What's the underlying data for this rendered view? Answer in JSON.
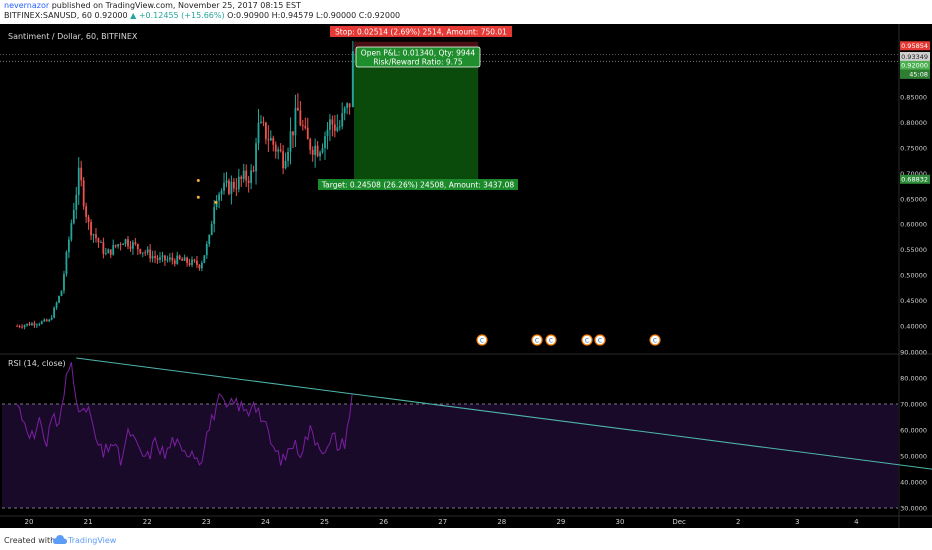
{
  "header": {
    "user": "nevernazor",
    "published_text": "published on TradingView.com, November 25, 2017 08:15 EST",
    "symbol_line": "BITFINEX:SANUSD, 60",
    "last": "0.92000",
    "change": "▲ +0.12455 (+15.66%)",
    "ohlc": "O:0.90900 H:0.94579 L:0.90000 C:0.92000"
  },
  "chart_title": "Santiment / Dollar, 60, BITFINEX",
  "colors": {
    "background": "#000000",
    "up": "#26a69a",
    "down": "#ef5350",
    "rsi_line": "#7b1fa2",
    "rsi_band": "#1a0a2a",
    "trendline": "#4db6ac",
    "profit_zone": "#0a4a0a",
    "stop_label": "#e53935",
    "target_label": "#1b8a2a"
  },
  "trade_labels": {
    "stop": "Stop: 0.02514 (2.69%) 2514, Amount: 750.01",
    "open_pl": "Open P&L: 0.01340, Qty: 9944",
    "risk_reward": "Risk/Reward Ratio: 9.75",
    "target": "Target: 0.24508 (26.26%) 24508, Amount: 3437.08"
  },
  "price_badges": {
    "stop": "0.95854",
    "entry": "0.93349",
    "last": "0.92000",
    "countdown": "45:08",
    "target": "0.68832"
  },
  "rsi": {
    "label": "RSI (14, close)"
  },
  "event_markers": [
    "C",
    "C",
    "C",
    "C",
    "C",
    "C"
  ],
  "footer": {
    "created_with": "Created with",
    "brand": "TradingView"
  },
  "chart_data": [
    {
      "type": "candlestick",
      "title": "Santiment / Dollar, 60, BITFINEX",
      "x_ticks": [
        "20",
        "21",
        "22",
        "23",
        "24",
        "25",
        "26",
        "27",
        "28",
        "29",
        "30",
        "Dec",
        "2",
        "3",
        "4"
      ],
      "y_ticks": [
        "0.85000",
        "0.80000",
        "0.75000",
        "0.70000",
        "0.65000",
        "0.60000",
        "0.55000",
        "0.50000",
        "0.45000",
        "0.40000"
      ],
      "ylim": [
        0.365,
        0.985
      ],
      "x_range_days": [
        19.8,
        35.6
      ],
      "grid": false,
      "series_close_waypoints": [
        [
          19.8,
          0.4
        ],
        [
          20.35,
          0.41
        ],
        [
          20.55,
          0.47
        ],
        [
          20.75,
          0.63
        ],
        [
          20.85,
          0.7
        ],
        [
          21.0,
          0.6
        ],
        [
          21.3,
          0.54
        ],
        [
          21.6,
          0.57
        ],
        [
          21.9,
          0.55
        ],
        [
          22.2,
          0.53
        ],
        [
          22.5,
          0.53
        ],
        [
          22.9,
          0.52
        ],
        [
          23.05,
          0.57
        ],
        [
          23.15,
          0.66
        ],
        [
          23.5,
          0.68
        ],
        [
          23.8,
          0.7
        ],
        [
          23.85,
          0.79
        ],
        [
          24.0,
          0.78
        ],
        [
          24.3,
          0.73
        ],
        [
          24.55,
          0.82
        ],
        [
          24.7,
          0.76
        ],
        [
          24.9,
          0.75
        ],
        [
          25.1,
          0.8
        ],
        [
          25.25,
          0.79
        ],
        [
          25.35,
          0.82
        ],
        [
          25.42,
          0.83
        ],
        [
          25.46,
          0.92
        ]
      ],
      "points_of_interest": [
        [
          23.0,
          0.686
        ],
        [
          23.0,
          0.653
        ],
        [
          23.3,
          0.643
        ]
      ],
      "position": {
        "type": "long",
        "entry": 0.93349,
        "stop": 0.95854,
        "target": 0.68832,
        "start_day": 25.5,
        "end_day": 27.6
      }
    },
    {
      "type": "line",
      "title": "RSI (14, close)",
      "y_ticks": [
        "90.0000",
        "80.0000",
        "70.0000",
        "60.0000",
        "50.0000",
        "40.0000",
        "30.0000"
      ],
      "ylim": [
        29,
        91
      ],
      "bands": [
        30,
        70
      ],
      "series_waypoints": [
        [
          19.8,
          70
        ],
        [
          19.95,
          62
        ],
        [
          20.1,
          56
        ],
        [
          20.2,
          64
        ],
        [
          20.3,
          54
        ],
        [
          20.4,
          68
        ],
        [
          20.5,
          60
        ],
        [
          20.65,
          82
        ],
        [
          20.72,
          86
        ],
        [
          20.8,
          74
        ],
        [
          20.9,
          64
        ],
        [
          21.0,
          70
        ],
        [
          21.1,
          58
        ],
        [
          21.25,
          50
        ],
        [
          21.4,
          56
        ],
        [
          21.55,
          48
        ],
        [
          21.7,
          60
        ],
        [
          21.85,
          52
        ],
        [
          22.0,
          49
        ],
        [
          22.15,
          56
        ],
        [
          22.3,
          50
        ],
        [
          22.45,
          57
        ],
        [
          22.6,
          50
        ],
        [
          22.75,
          53
        ],
        [
          22.9,
          48
        ],
        [
          23.0,
          58
        ],
        [
          23.1,
          64
        ],
        [
          23.2,
          72
        ],
        [
          23.35,
          68
        ],
        [
          23.5,
          71
        ],
        [
          23.7,
          66
        ],
        [
          23.8,
          72
        ],
        [
          23.95,
          64
        ],
        [
          24.05,
          58
        ],
        [
          24.15,
          52
        ],
        [
          24.3,
          48
        ],
        [
          24.45,
          55
        ],
        [
          24.6,
          52
        ],
        [
          24.75,
          60
        ],
        [
          24.9,
          55
        ],
        [
          25.05,
          52
        ],
        [
          25.15,
          58
        ],
        [
          25.25,
          53
        ],
        [
          25.35,
          56
        ],
        [
          25.42,
          66
        ],
        [
          25.47,
          73
        ]
      ],
      "trendline": [
        [
          20.8,
          87.7
        ],
        [
          35.6,
          44
        ]
      ]
    }
  ]
}
